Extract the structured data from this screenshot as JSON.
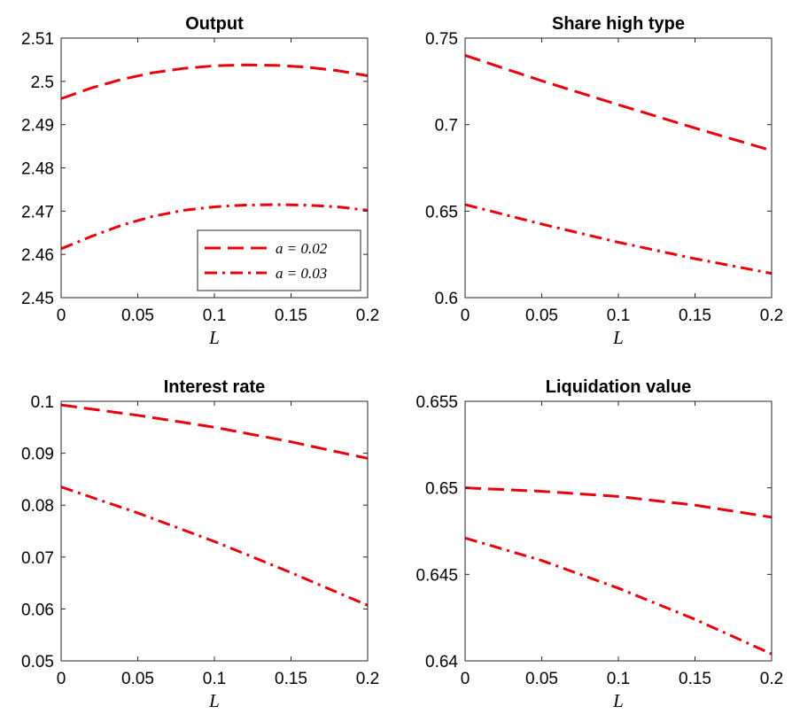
{
  "chart_data": [
    {
      "type": "line",
      "title": "Output",
      "xlabel": "L",
      "ylabel": "",
      "xlim": [
        0,
        0.2
      ],
      "ylim": [
        2.45,
        2.51
      ],
      "xticks": [
        "0",
        "0.05",
        "0.1",
        "0.15",
        "0.2"
      ],
      "yticks": [
        "2.45",
        "2.46",
        "2.47",
        "2.48",
        "2.49",
        "2.5",
        "2.51"
      ],
      "grid": false,
      "legend": {
        "placement": "bottom-right",
        "entries": [
          "a = 0.02",
          "a = 0.03"
        ]
      },
      "series": [
        {
          "name": "a = 0.02",
          "style": "dashed",
          "x": [
            0,
            0.02,
            0.04,
            0.06,
            0.08,
            0.1,
            0.12,
            0.14,
            0.16,
            0.18,
            0.2
          ],
          "y": [
            2.496,
            2.4985,
            2.5005,
            2.502,
            2.503,
            2.5036,
            2.5038,
            2.5037,
            2.5033,
            2.5025,
            2.5013
          ]
        },
        {
          "name": "a = 0.03",
          "style": "dashdot",
          "x": [
            0,
            0.02,
            0.04,
            0.06,
            0.08,
            0.1,
            0.12,
            0.14,
            0.16,
            0.18,
            0.2
          ],
          "y": [
            2.4613,
            2.4642,
            2.4668,
            2.4688,
            2.4702,
            2.471,
            2.4714,
            2.4715,
            2.4714,
            2.471,
            2.4702
          ]
        }
      ]
    },
    {
      "type": "line",
      "title": "Share high type",
      "xlabel": "L",
      "ylabel": "",
      "xlim": [
        0,
        0.2
      ],
      "ylim": [
        0.6,
        0.75
      ],
      "xticks": [
        "0",
        "0.05",
        "0.1",
        "0.15",
        "0.2"
      ],
      "yticks": [
        "0.6",
        "0.65",
        "0.7",
        "0.75"
      ],
      "grid": false,
      "series": [
        {
          "name": "a = 0.02",
          "style": "dashed",
          "x": [
            0,
            0.05,
            0.1,
            0.15,
            0.2
          ],
          "y": [
            0.74,
            0.7253,
            0.7115,
            0.698,
            0.685
          ]
        },
        {
          "name": "a = 0.03",
          "style": "dashdot",
          "x": [
            0,
            0.05,
            0.1,
            0.15,
            0.2
          ],
          "y": [
            0.6538,
            0.6425,
            0.632,
            0.6225,
            0.614
          ]
        }
      ]
    },
    {
      "type": "line",
      "title": "Interest rate",
      "xlabel": "L",
      "ylabel": "",
      "xlim": [
        0,
        0.2
      ],
      "ylim": [
        0.05,
        0.1
      ],
      "xticks": [
        "0",
        "0.05",
        "0.1",
        "0.15",
        "0.2"
      ],
      "yticks": [
        "0.05",
        "0.06",
        "0.07",
        "0.08",
        "0.09",
        "0.1"
      ],
      "grid": false,
      "series": [
        {
          "name": "a = 0.02",
          "style": "dashed",
          "x": [
            0,
            0.05,
            0.1,
            0.15,
            0.2
          ],
          "y": [
            0.0993,
            0.0973,
            0.095,
            0.0922,
            0.089
          ]
        },
        {
          "name": "a = 0.03",
          "style": "dashdot",
          "x": [
            0,
            0.05,
            0.1,
            0.15,
            0.2
          ],
          "y": [
            0.0835,
            0.0785,
            0.073,
            0.067,
            0.0607
          ]
        }
      ]
    },
    {
      "type": "line",
      "title": "Liquidation value",
      "xlabel": "L",
      "ylabel": "",
      "xlim": [
        0,
        0.2
      ],
      "ylim": [
        0.64,
        0.655
      ],
      "xticks": [
        "0",
        "0.05",
        "0.1",
        "0.15",
        "0.2"
      ],
      "yticks": [
        "0.64",
        "0.645",
        "0.65",
        "0.655"
      ],
      "grid": false,
      "series": [
        {
          "name": "a = 0.02",
          "style": "dashed",
          "x": [
            0,
            0.05,
            0.1,
            0.15,
            0.2
          ],
          "y": [
            0.65,
            0.6498,
            0.6495,
            0.649,
            0.6483
          ]
        },
        {
          "name": "a = 0.03",
          "style": "dashdot",
          "x": [
            0,
            0.05,
            0.1,
            0.15,
            0.2
          ],
          "y": [
            0.6471,
            0.6458,
            0.6442,
            0.6424,
            0.6404
          ]
        }
      ]
    }
  ]
}
